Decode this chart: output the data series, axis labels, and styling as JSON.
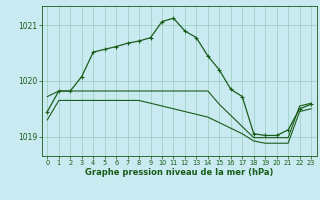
{
  "title": "Graphe pression niveau de la mer (hPa)",
  "bg_color": "#c8eaf0",
  "grid_color": "#99ccbb",
  "line_color": "#1a5c1a",
  "xlim": [
    -0.5,
    23.5
  ],
  "ylim": [
    1018.65,
    1021.35
  ],
  "yticks": [
    1019,
    1020,
    1021
  ],
  "xticks": [
    0,
    1,
    2,
    3,
    4,
    5,
    6,
    7,
    8,
    9,
    10,
    11,
    12,
    13,
    14,
    15,
    16,
    17,
    18,
    19,
    20,
    21,
    22,
    23
  ],
  "line1_x": [
    0,
    1,
    2,
    3,
    4,
    5,
    6,
    7,
    8,
    9,
    10,
    11,
    12,
    13,
    14,
    15,
    16,
    17,
    18,
    19,
    20,
    21,
    22,
    23
  ],
  "line1_y": [
    1019.45,
    1019.82,
    1019.82,
    1020.08,
    1020.52,
    1020.57,
    1020.62,
    1020.68,
    1020.72,
    1020.78,
    1021.07,
    1021.13,
    1020.9,
    1020.78,
    1020.45,
    1020.2,
    1019.85,
    1019.72,
    1019.05,
    1019.02,
    1019.02,
    1019.12,
    1019.5,
    1019.58
  ],
  "line2_x": [
    0,
    1,
    2,
    3,
    4,
    5,
    6,
    7,
    8,
    9,
    10,
    11,
    12,
    13,
    14,
    15,
    16,
    17,
    18,
    19,
    20,
    21,
    22,
    23
  ],
  "line2_y": [
    1019.72,
    1019.82,
    1019.82,
    1019.82,
    1019.82,
    1019.82,
    1019.82,
    1019.82,
    1019.82,
    1019.82,
    1019.82,
    1019.82,
    1019.82,
    1019.82,
    1019.82,
    1019.58,
    1019.38,
    1019.18,
    1018.98,
    1018.98,
    1018.98,
    1018.98,
    1019.55,
    1019.6
  ],
  "line3_x": [
    0,
    1,
    2,
    3,
    4,
    5,
    6,
    7,
    8,
    9,
    10,
    11,
    12,
    13,
    14,
    15,
    16,
    17,
    18,
    19,
    20,
    21,
    22,
    23
  ],
  "line3_y": [
    1019.3,
    1019.65,
    1019.65,
    1019.65,
    1019.65,
    1019.65,
    1019.65,
    1019.65,
    1019.65,
    1019.6,
    1019.55,
    1019.5,
    1019.45,
    1019.4,
    1019.35,
    1019.25,
    1019.15,
    1019.05,
    1018.92,
    1018.88,
    1018.88,
    1018.88,
    1019.45,
    1019.5
  ]
}
